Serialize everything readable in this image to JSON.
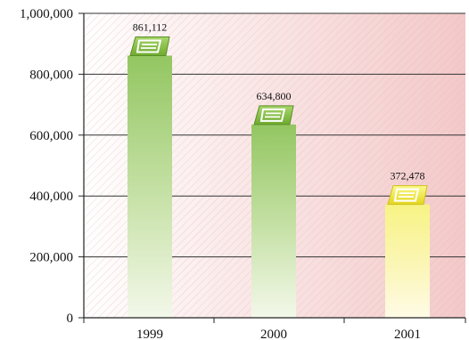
{
  "chart_data": {
    "type": "bar",
    "categories": [
      "1999",
      "2000",
      "2001"
    ],
    "values": [
      861112,
      634800,
      372478
    ],
    "data_labels": [
      "861,112",
      "634,800",
      "372,478"
    ],
    "ylim": [
      0,
      1000000
    ],
    "y_ticks": [
      0,
      200000,
      400000,
      600000,
      800000,
      1000000
    ],
    "y_tick_labels": [
      "0",
      "200,000",
      "400,000",
      "600,000",
      "800,000",
      "1,000,000"
    ],
    "title": "",
    "xlabel": "",
    "ylabel": "",
    "grid": true,
    "legend": "none",
    "bar_colors": [
      "#9ccb6c",
      "#9ccb6c",
      "#f3f36a"
    ],
    "bar_fade_color": "#f3f8ea",
    "bar_fade_color_yellow": "#fbf8d9",
    "background_gradient": [
      "#ffffff",
      "#f3c9c9"
    ],
    "icon": "barcode-like-tag-icon"
  }
}
